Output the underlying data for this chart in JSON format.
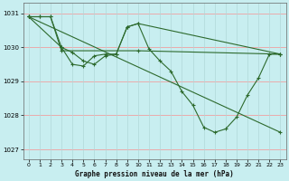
{
  "title": "Graphe pression niveau de la mer (hPa)",
  "background_color": "#c8eef0",
  "grid_color_h": "#f0a0a0",
  "grid_color_v": "#b0d8d8",
  "line_color": "#2d6a2d",
  "xlim": [
    -0.5,
    23.5
  ],
  "ylim": [
    1026.7,
    1031.3
  ],
  "yticks": [
    1027,
    1028,
    1029,
    1030,
    1031
  ],
  "xticks": [
    0,
    1,
    2,
    3,
    4,
    5,
    6,
    7,
    8,
    9,
    10,
    11,
    12,
    13,
    14,
    15,
    16,
    17,
    18,
    19,
    20,
    21,
    22,
    23
  ],
  "series1": [
    [
      0,
      1030.9
    ],
    [
      1,
      1030.9
    ],
    [
      2,
      1030.9
    ],
    [
      3,
      1030.0
    ],
    [
      4,
      1029.85
    ],
    [
      5,
      1029.6
    ],
    [
      6,
      1029.5
    ],
    [
      7,
      1029.75
    ],
    [
      8,
      1029.8
    ],
    [
      9,
      1030.6
    ],
    [
      10,
      1030.7
    ],
    [
      11,
      1029.95
    ],
    [
      12,
      1029.6
    ],
    [
      13,
      1029.3
    ],
    [
      14,
      1028.7
    ],
    [
      15,
      1028.3
    ],
    [
      16,
      1027.65
    ],
    [
      17,
      1027.5
    ],
    [
      18,
      1027.6
    ],
    [
      19,
      1027.95
    ],
    [
      20,
      1028.6
    ],
    [
      21,
      1029.1
    ],
    [
      22,
      1029.8
    ],
    [
      23,
      1029.8
    ]
  ],
  "series2": [
    [
      0,
      1030.9
    ],
    [
      1,
      1030.9
    ],
    [
      2,
      1030.9
    ],
    [
      3,
      1029.9
    ],
    [
      10,
      1029.9
    ],
    [
      23,
      1029.8
    ]
  ],
  "series3": [
    [
      0,
      1030.9
    ],
    [
      3,
      1030.0
    ],
    [
      4,
      1029.5
    ],
    [
      5,
      1029.45
    ],
    [
      6,
      1029.75
    ],
    [
      7,
      1029.8
    ],
    [
      8,
      1029.8
    ],
    [
      9,
      1030.6
    ],
    [
      10,
      1030.7
    ],
    [
      23,
      1029.8
    ]
  ],
  "series4": [
    [
      0,
      1030.9
    ],
    [
      23,
      1027.5
    ]
  ]
}
